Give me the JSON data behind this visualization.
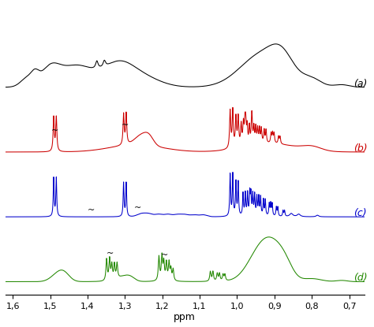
{
  "title": "",
  "xlabel": "ppm",
  "xlim": [
    1.62,
    0.66
  ],
  "colors": {
    "a": "#000000",
    "b": "#cc0000",
    "c": "#0000cc",
    "d": "#228800"
  },
  "labels": {
    "a": "(a)",
    "b": "(b)",
    "c": "(c)",
    "d": "(d)"
  },
  "offsets": {
    "a": 2.8,
    "b": 1.9,
    "c": 1.0,
    "d": 0.1
  },
  "tilde_positions": {
    "b": [
      1.487,
      1.3
    ],
    "c": [
      1.39,
      1.265
    ],
    "d": [
      1.34,
      1.195
    ]
  },
  "background": "#ffffff",
  "xticks": [
    1.6,
    1.5,
    1.4,
    1.3,
    1.2,
    1.1,
    1.0,
    0.9,
    0.8,
    0.7
  ],
  "xlabels": [
    "1,6",
    "1,5",
    "1,4",
    "1,3",
    "1,2",
    "1,1",
    "1,0",
    "0,9",
    "0,8",
    "0,7"
  ]
}
